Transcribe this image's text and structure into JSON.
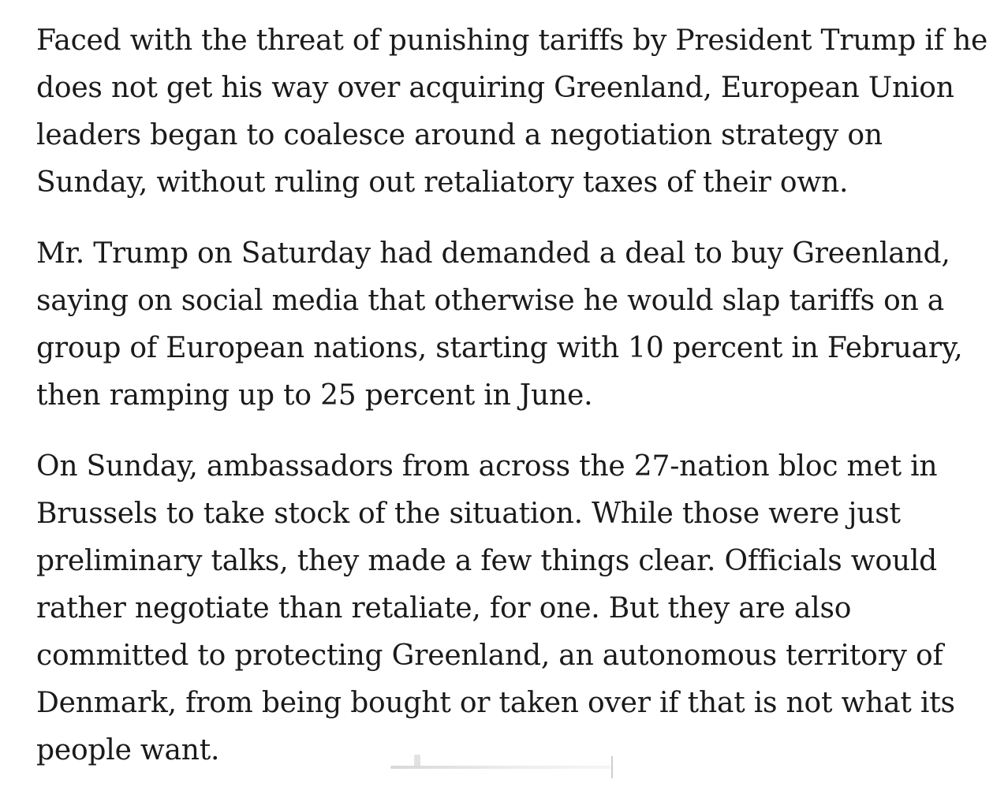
{
  "article": {
    "paragraphs": [
      "Faced with the threat of punishing tariffs by President Trump if he does not get his way over acquiring Greenland, European Union leaders began to coalesce around a negotiation strategy on Sunday, without ruling out retaliatory taxes of their own.",
      "Mr. Trump on Saturday had demanded a deal to buy Greenland, saying on social media that otherwise he would slap tariffs on a group of European nations, starting with 10 percent in February, then ramping up to 25 percent in June.",
      "On Sunday, ambassadors from across the 27-nation bloc met in Brussels to take stock of the situation. While those were just preliminary talks, they made a few things clear. Officials would rather negotiate than retaliate, for one. But they are also committed to protecting Greenland, an autonomous territory of Denmark, from being bought or taken over if that is not what its people want."
    ]
  },
  "colors": {
    "text": "#1a1a1a",
    "background": "#ffffff"
  }
}
